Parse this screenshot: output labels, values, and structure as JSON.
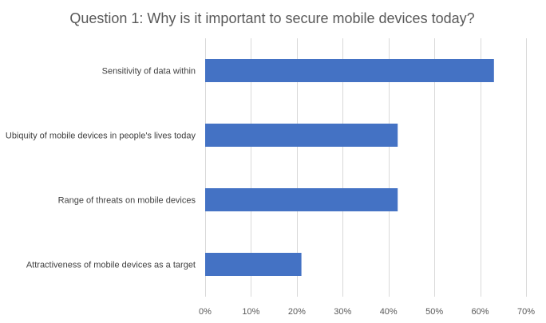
{
  "chart_data": {
    "type": "bar",
    "orientation": "horizontal",
    "title": "Question 1: Why is it important to secure mobile devices today?",
    "xlabel": "",
    "ylabel": "",
    "categories": [
      "Sensitivity of data within",
      "Ubiquity of mobile devices in people's lives today",
      "Range of threats on mobile devices",
      "Attractiveness of mobile devices as a target"
    ],
    "values": [
      63,
      42,
      42,
      21
    ],
    "xlim": [
      0,
      70
    ],
    "xticks": [
      0,
      10,
      20,
      30,
      40,
      50,
      60,
      70
    ],
    "xtick_labels": [
      "0%",
      "10%",
      "20%",
      "30%",
      "40%",
      "50%",
      "60%",
      "70%"
    ],
    "grid": true,
    "legend": "none",
    "bar_color": "#4472c4"
  }
}
